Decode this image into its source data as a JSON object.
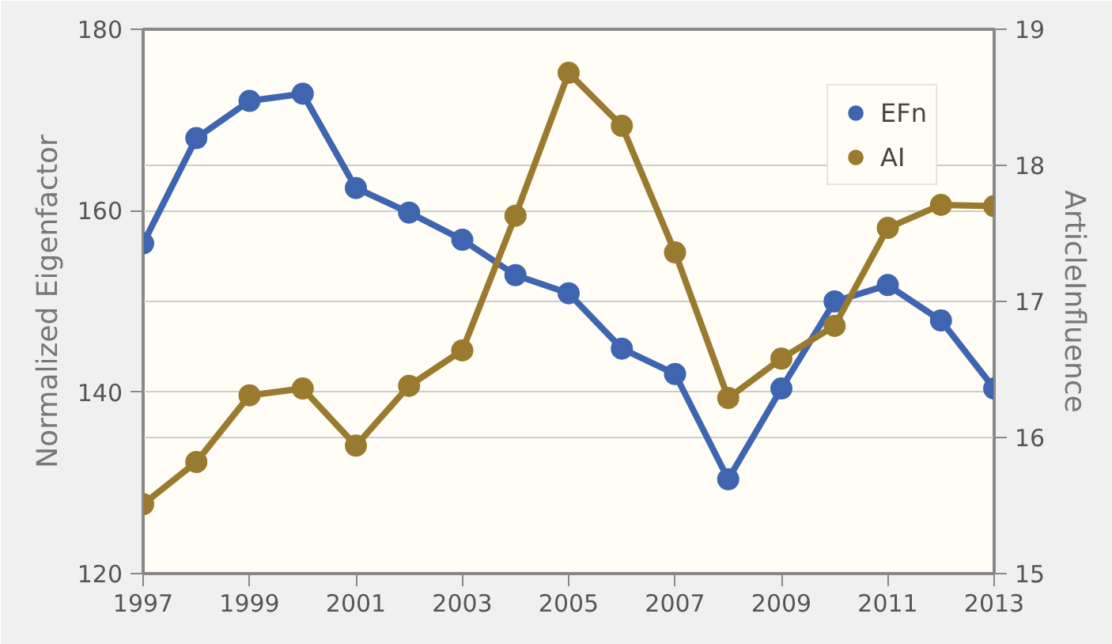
{
  "chart_data": {
    "type": "line",
    "x": [
      1997,
      1998,
      1999,
      2000,
      2001,
      2002,
      2003,
      2004,
      2005,
      2006,
      2007,
      2008,
      2009,
      2010,
      2011,
      2012,
      2013
    ],
    "series": [
      {
        "name": "EFn",
        "color": "#3f65b0",
        "values": [
          156.4,
          168.0,
          172.1,
          172.9,
          162.5,
          159.8,
          156.8,
          152.9,
          150.9,
          144.8,
          142.0,
          130.4,
          140.4,
          150.0,
          151.8,
          147.9,
          140.4
        ]
      },
      {
        "name": "AI",
        "color": "#9a7a2e",
        "axis": "y2",
        "values": [
          15.51,
          15.82,
          16.31,
          16.36,
          15.94,
          16.38,
          16.64,
          17.63,
          18.68,
          18.29,
          17.36,
          16.29,
          16.58,
          16.82,
          17.54,
          17.71,
          17.7
        ]
      }
    ],
    "ylabel": "Normalized Eigenfactor",
    "y2label": "ArticleInfluence",
    "xlim": [
      1997,
      2013
    ],
    "xticks": [
      1997,
      1999,
      2001,
      2003,
      2005,
      2007,
      2009,
      2011,
      2013
    ],
    "ylim": [
      120,
      180
    ],
    "yticks": [
      120,
      140,
      160,
      180
    ],
    "y2lim": [
      15,
      19
    ],
    "y2ticks": [
      15,
      16,
      17,
      18,
      19
    ],
    "grid": "y",
    "legend": "top right",
    "marker": "circle",
    "line_style": "solid"
  }
}
